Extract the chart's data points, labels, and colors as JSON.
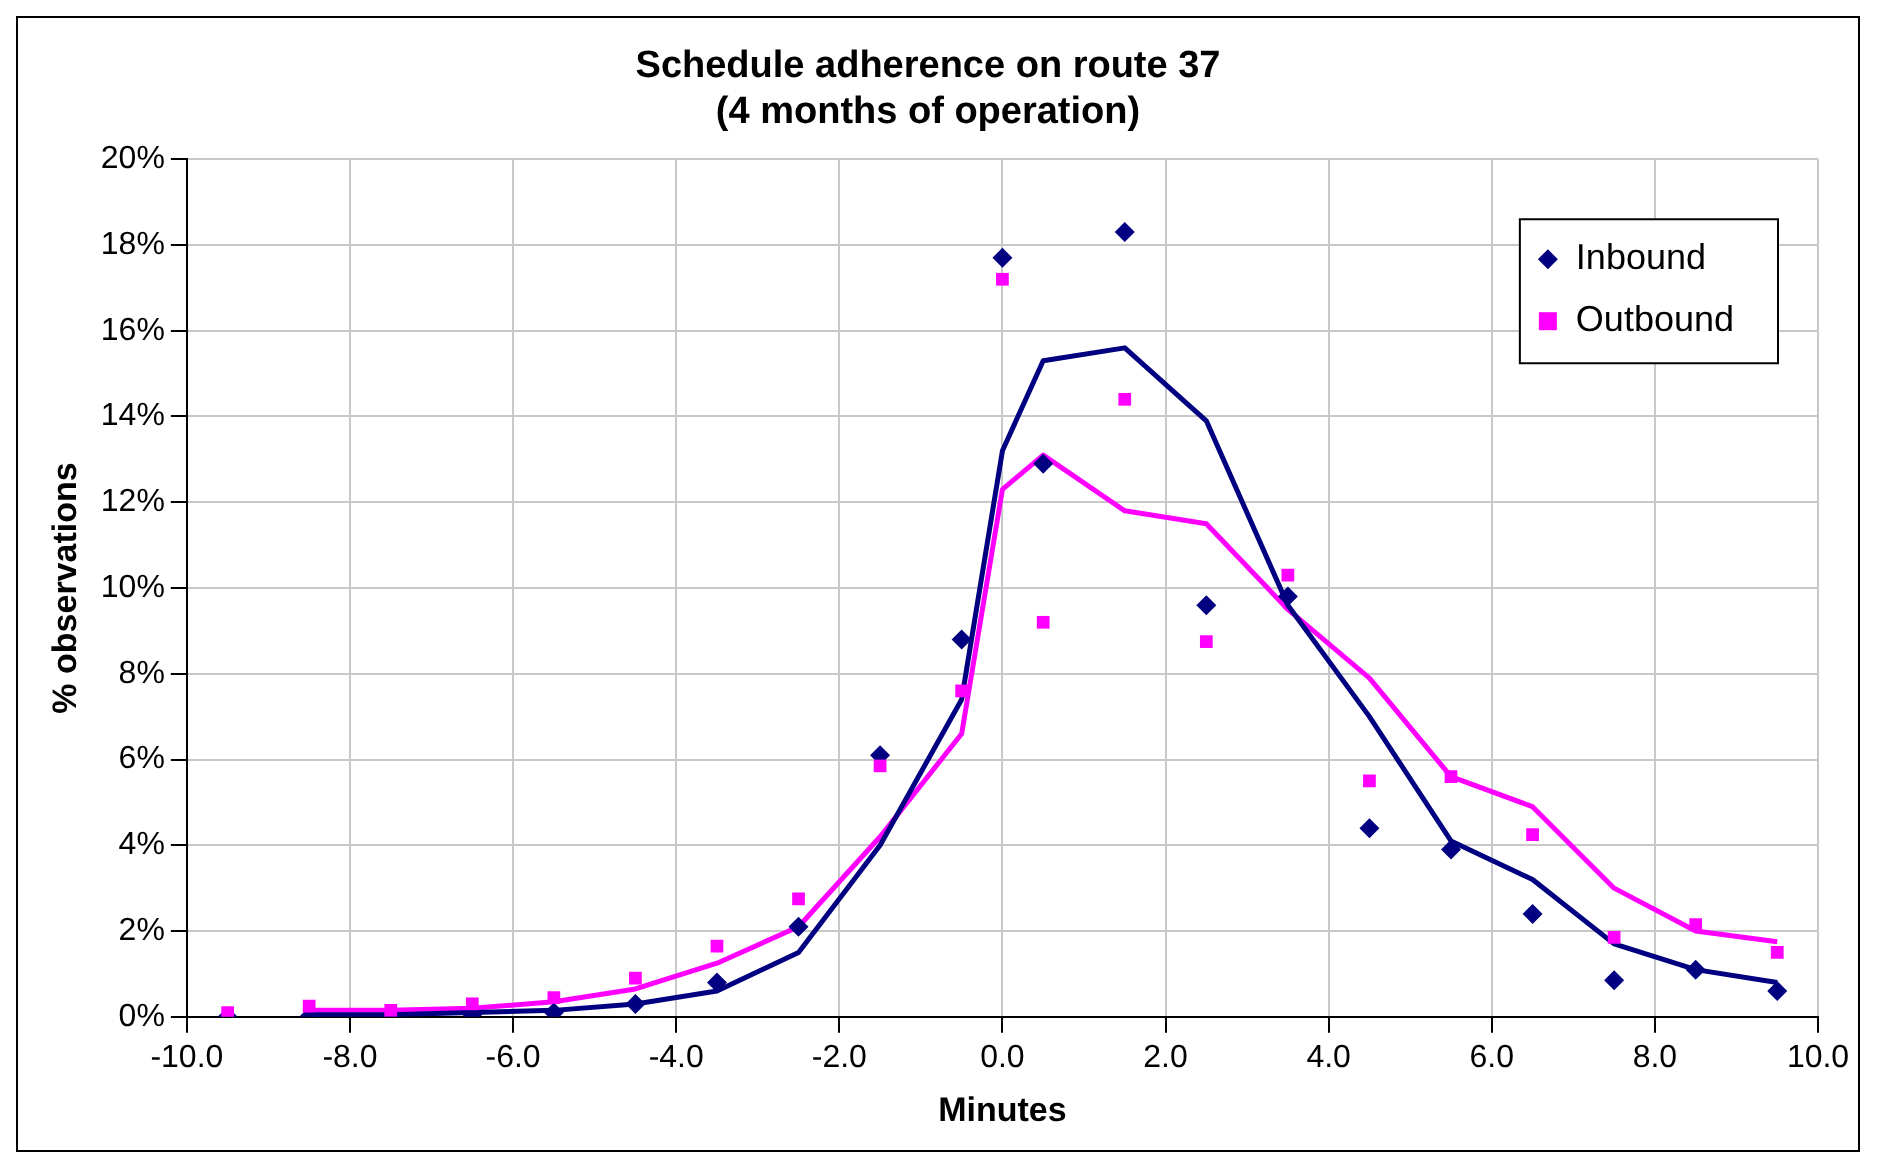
{
  "chart_data": {
    "type": "scatter",
    "title": "Schedule adherence on route 37\n(4 months of operation)",
    "xlabel": "Minutes",
    "ylabel": "% observations",
    "xlim": [
      -10,
      10
    ],
    "xticks": [
      {
        "value": -10,
        "label": "-10.0"
      },
      {
        "value": -8,
        "label": "-8.0"
      },
      {
        "value": -6,
        "label": "-6.0"
      },
      {
        "value": -4,
        "label": "-4.0"
      },
      {
        "value": -2,
        "label": "-2.0"
      },
      {
        "value": 0,
        "label": "0.0"
      },
      {
        "value": 2,
        "label": "2.0"
      },
      {
        "value": 4,
        "label": "4.0"
      },
      {
        "value": 6,
        "label": "6.0"
      },
      {
        "value": 8,
        "label": "8.0"
      },
      {
        "value": 10,
        "label": "10.0"
      }
    ],
    "ylim": [
      0,
      20
    ],
    "yticks": [
      {
        "value": 0,
        "label": "0%"
      },
      {
        "value": 2,
        "label": "2%"
      },
      {
        "value": 4,
        "label": "4%"
      },
      {
        "value": 6,
        "label": "6%"
      },
      {
        "value": 8,
        "label": "8%"
      },
      {
        "value": 10,
        "label": "10%"
      },
      {
        "value": 12,
        "label": "12%"
      },
      {
        "value": 14,
        "label": "14%"
      },
      {
        "value": 16,
        "label": "16%"
      },
      {
        "value": 18,
        "label": "18%"
      },
      {
        "value": 20,
        "label": "20%"
      }
    ],
    "grid": true,
    "legend": "top right",
    "series": [
      {
        "name": "Inbound",
        "type": "scatter",
        "marker": "diamond",
        "color": "#000080",
        "x": [
          -9.5,
          -8.5,
          -7.5,
          -6.5,
          -5.5,
          -4.5,
          -3.5,
          -2.5,
          -1.5,
          -0.5,
          0,
          0.5,
          1.5,
          2.5,
          3.5,
          4.5,
          5.5,
          6.5,
          7.5,
          8.5,
          9.5
        ],
        "values": [
          0,
          0,
          0,
          0.05,
          0.1,
          0.3,
          0.8,
          2.1,
          6.1,
          8.8,
          17.7,
          12.9,
          18.3,
          9.6,
          9.8,
          4.4,
          3.9,
          2.4,
          0.85,
          1.1,
          0.6
        ]
      },
      {
        "name": "Outbound",
        "type": "scatter",
        "marker": "square",
        "color": "#ff00ff",
        "x": [
          -9.5,
          -8.5,
          -7.5,
          -6.5,
          -5.5,
          -4.5,
          -3.5,
          -2.5,
          -1.5,
          -0.5,
          0,
          0.5,
          1.5,
          2.5,
          3.5,
          4.5,
          5.5,
          6.5,
          7.5,
          8.5,
          9.5
        ],
        "values": [
          0.1,
          0.25,
          0.15,
          0.3,
          0.45,
          0.9,
          1.65,
          2.75,
          5.85,
          7.6,
          17.2,
          9.2,
          14.4,
          8.75,
          10.3,
          5.5,
          5.6,
          4.25,
          1.85,
          2.15,
          1.5
        ]
      },
      {
        "type": "line",
        "marker": "none",
        "color": "#000080",
        "x": [
          -8.5,
          -7.5,
          -6.5,
          -5.5,
          -4.5,
          -3.5,
          -2.5,
          -1.5,
          -0.5,
          0,
          0.5,
          1.5,
          2.5,
          3.5,
          4.5,
          5.5,
          6.5,
          7.5,
          8.5,
          9.5
        ],
        "values": [
          0.05,
          0.05,
          0.1,
          0.15,
          0.3,
          0.6,
          1.5,
          4.0,
          7.4,
          13.2,
          15.3,
          15.6,
          13.9,
          9.6,
          7.0,
          4.1,
          3.2,
          1.7,
          1.1,
          0.8
        ]
      },
      {
        "type": "line",
        "marker": "none",
        "color": "#ff00ff",
        "x": [
          -8.5,
          -7.5,
          -6.5,
          -5.5,
          -4.5,
          -3.5,
          -2.5,
          -1.5,
          -0.5,
          0,
          0.5,
          1.5,
          2.5,
          3.5,
          4.5,
          5.5,
          6.5,
          7.5,
          8.5,
          9.5
        ],
        "values": [
          0.15,
          0.15,
          0.2,
          0.35,
          0.65,
          1.25,
          2.1,
          4.2,
          6.6,
          12.3,
          13.1,
          11.8,
          11.5,
          9.5,
          7.9,
          5.6,
          4.9,
          3.0,
          2.0,
          1.75
        ]
      }
    ]
  }
}
